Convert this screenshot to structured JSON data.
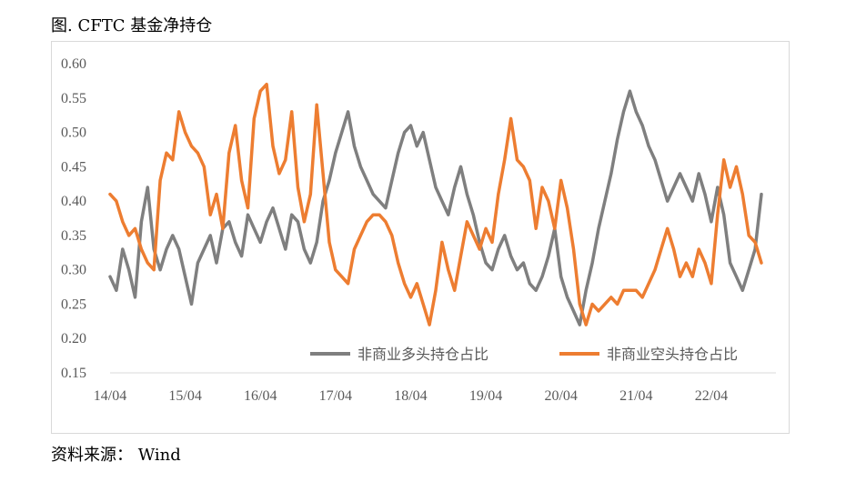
{
  "figure": {
    "title": "图. CFTC 基金净持仓",
    "source": "资料来源： Wind"
  },
  "chart_data": {
    "type": "line",
    "title": "",
    "xlabel": "",
    "ylabel": "",
    "ylim": [
      0.15,
      0.6
    ],
    "y_ticks": [
      "0.60",
      "0.55",
      "0.50",
      "0.45",
      "0.40",
      "0.35",
      "0.30",
      "0.25",
      "0.20",
      "0.15"
    ],
    "x_ticks": [
      "14/04",
      "15/04",
      "16/04",
      "17/04",
      "18/04",
      "19/04",
      "20/04",
      "21/04",
      "22/04"
    ],
    "x_range": [
      "2014-04",
      "2022-12"
    ],
    "grid": false,
    "legend_position": "bottom-right",
    "series": [
      {
        "name": "非商业多头持仓占比",
        "color": "#7f7f7f",
        "points": [
          [
            "2014-04",
            0.29
          ],
          [
            "2014-05",
            0.27
          ],
          [
            "2014-06",
            0.33
          ],
          [
            "2014-07",
            0.3
          ],
          [
            "2014-08",
            0.26
          ],
          [
            "2014-09",
            0.37
          ],
          [
            "2014-10",
            0.42
          ],
          [
            "2014-11",
            0.33
          ],
          [
            "2014-12",
            0.3
          ],
          [
            "2015-01",
            0.33
          ],
          [
            "2015-02",
            0.35
          ],
          [
            "2015-03",
            0.33
          ],
          [
            "2015-04",
            0.29
          ],
          [
            "2015-05",
            0.25
          ],
          [
            "2015-06",
            0.31
          ],
          [
            "2015-07",
            0.33
          ],
          [
            "2015-08",
            0.35
          ],
          [
            "2015-09",
            0.31
          ],
          [
            "2015-10",
            0.36
          ],
          [
            "2015-11",
            0.37
          ],
          [
            "2015-12",
            0.34
          ],
          [
            "2016-01",
            0.32
          ],
          [
            "2016-02",
            0.38
          ],
          [
            "2016-03",
            0.36
          ],
          [
            "2016-04",
            0.34
          ],
          [
            "2016-05",
            0.37
          ],
          [
            "2016-06",
            0.39
          ],
          [
            "2016-07",
            0.36
          ],
          [
            "2016-08",
            0.33
          ],
          [
            "2016-09",
            0.38
          ],
          [
            "2016-10",
            0.37
          ],
          [
            "2016-11",
            0.33
          ],
          [
            "2016-12",
            0.31
          ],
          [
            "2017-01",
            0.34
          ],
          [
            "2017-02",
            0.4
          ],
          [
            "2017-03",
            0.43
          ],
          [
            "2017-04",
            0.47
          ],
          [
            "2017-05",
            0.5
          ],
          [
            "2017-06",
            0.53
          ],
          [
            "2017-07",
            0.48
          ],
          [
            "2017-08",
            0.45
          ],
          [
            "2017-09",
            0.43
          ],
          [
            "2017-10",
            0.41
          ],
          [
            "2017-11",
            0.4
          ],
          [
            "2017-12",
            0.39
          ],
          [
            "2018-01",
            0.43
          ],
          [
            "2018-02",
            0.47
          ],
          [
            "2018-03",
            0.5
          ],
          [
            "2018-04",
            0.51
          ],
          [
            "2018-05",
            0.48
          ],
          [
            "2018-06",
            0.5
          ],
          [
            "2018-07",
            0.46
          ],
          [
            "2018-08",
            0.42
          ],
          [
            "2018-09",
            0.4
          ],
          [
            "2018-10",
            0.38
          ],
          [
            "2018-11",
            0.42
          ],
          [
            "2018-12",
            0.45
          ],
          [
            "2019-01",
            0.41
          ],
          [
            "2019-02",
            0.38
          ],
          [
            "2019-03",
            0.34
          ],
          [
            "2019-04",
            0.31
          ],
          [
            "2019-05",
            0.3
          ],
          [
            "2019-06",
            0.33
          ],
          [
            "2019-07",
            0.35
          ],
          [
            "2019-08",
            0.32
          ],
          [
            "2019-09",
            0.3
          ],
          [
            "2019-10",
            0.31
          ],
          [
            "2019-11",
            0.28
          ],
          [
            "2019-12",
            0.27
          ],
          [
            "2020-01",
            0.29
          ],
          [
            "2020-02",
            0.32
          ],
          [
            "2020-03",
            0.36
          ],
          [
            "2020-04",
            0.29
          ],
          [
            "2020-05",
            0.26
          ],
          [
            "2020-06",
            0.24
          ],
          [
            "2020-07",
            0.22
          ],
          [
            "2020-08",
            0.27
          ],
          [
            "2020-09",
            0.31
          ],
          [
            "2020-10",
            0.36
          ],
          [
            "2020-11",
            0.4
          ],
          [
            "2020-12",
            0.44
          ],
          [
            "2021-01",
            0.49
          ],
          [
            "2021-02",
            0.53
          ],
          [
            "2021-03",
            0.56
          ],
          [
            "2021-04",
            0.53
          ],
          [
            "2021-05",
            0.51
          ],
          [
            "2021-06",
            0.48
          ],
          [
            "2021-07",
            0.46
          ],
          [
            "2021-08",
            0.43
          ],
          [
            "2021-09",
            0.4
          ],
          [
            "2021-10",
            0.42
          ],
          [
            "2021-11",
            0.44
          ],
          [
            "2021-12",
            0.42
          ],
          [
            "2022-01",
            0.4
          ],
          [
            "2022-02",
            0.44
          ],
          [
            "2022-03",
            0.41
          ],
          [
            "2022-04",
            0.37
          ],
          [
            "2022-05",
            0.42
          ],
          [
            "2022-06",
            0.38
          ],
          [
            "2022-07",
            0.31
          ],
          [
            "2022-08",
            0.29
          ],
          [
            "2022-09",
            0.27
          ],
          [
            "2022-10",
            0.3
          ],
          [
            "2022-11",
            0.33
          ],
          [
            "2022-12",
            0.41
          ]
        ]
      },
      {
        "name": "非商业空头持仓占比",
        "color": "#ed7d31",
        "points": [
          [
            "2014-04",
            0.41
          ],
          [
            "2014-05",
            0.4
          ],
          [
            "2014-06",
            0.37
          ],
          [
            "2014-07",
            0.35
          ],
          [
            "2014-08",
            0.36
          ],
          [
            "2014-09",
            0.33
          ],
          [
            "2014-10",
            0.31
          ],
          [
            "2014-11",
            0.3
          ],
          [
            "2014-12",
            0.43
          ],
          [
            "2015-01",
            0.47
          ],
          [
            "2015-02",
            0.46
          ],
          [
            "2015-03",
            0.53
          ],
          [
            "2015-04",
            0.5
          ],
          [
            "2015-05",
            0.48
          ],
          [
            "2015-06",
            0.47
          ],
          [
            "2015-07",
            0.45
          ],
          [
            "2015-08",
            0.38
          ],
          [
            "2015-09",
            0.41
          ],
          [
            "2015-10",
            0.36
          ],
          [
            "2015-11",
            0.47
          ],
          [
            "2015-12",
            0.51
          ],
          [
            "2016-01",
            0.43
          ],
          [
            "2016-02",
            0.39
          ],
          [
            "2016-03",
            0.52
          ],
          [
            "2016-04",
            0.56
          ],
          [
            "2016-05",
            0.57
          ],
          [
            "2016-06",
            0.48
          ],
          [
            "2016-07",
            0.44
          ],
          [
            "2016-08",
            0.46
          ],
          [
            "2016-09",
            0.53
          ],
          [
            "2016-10",
            0.42
          ],
          [
            "2016-11",
            0.37
          ],
          [
            "2016-12",
            0.41
          ],
          [
            "2017-01",
            0.54
          ],
          [
            "2017-02",
            0.44
          ],
          [
            "2017-03",
            0.34
          ],
          [
            "2017-04",
            0.3
          ],
          [
            "2017-05",
            0.29
          ],
          [
            "2017-06",
            0.28
          ],
          [
            "2017-07",
            0.33
          ],
          [
            "2017-08",
            0.35
          ],
          [
            "2017-09",
            0.37
          ],
          [
            "2017-10",
            0.38
          ],
          [
            "2017-11",
            0.38
          ],
          [
            "2017-12",
            0.37
          ],
          [
            "2018-01",
            0.35
          ],
          [
            "2018-02",
            0.31
          ],
          [
            "2018-03",
            0.28
          ],
          [
            "2018-04",
            0.26
          ],
          [
            "2018-05",
            0.28
          ],
          [
            "2018-06",
            0.25
          ],
          [
            "2018-07",
            0.22
          ],
          [
            "2018-08",
            0.27
          ],
          [
            "2018-09",
            0.34
          ],
          [
            "2018-10",
            0.3
          ],
          [
            "2018-11",
            0.27
          ],
          [
            "2018-12",
            0.32
          ],
          [
            "2019-01",
            0.37
          ],
          [
            "2019-02",
            0.35
          ],
          [
            "2019-03",
            0.33
          ],
          [
            "2019-04",
            0.36
          ],
          [
            "2019-05",
            0.34
          ],
          [
            "2019-06",
            0.41
          ],
          [
            "2019-07",
            0.46
          ],
          [
            "2019-08",
            0.52
          ],
          [
            "2019-09",
            0.46
          ],
          [
            "2019-10",
            0.45
          ],
          [
            "2019-11",
            0.43
          ],
          [
            "2019-12",
            0.36
          ],
          [
            "2020-01",
            0.42
          ],
          [
            "2020-02",
            0.4
          ],
          [
            "2020-03",
            0.36
          ],
          [
            "2020-04",
            0.43
          ],
          [
            "2020-05",
            0.39
          ],
          [
            "2020-06",
            0.33
          ],
          [
            "2020-07",
            0.25
          ],
          [
            "2020-08",
            0.22
          ],
          [
            "2020-09",
            0.25
          ],
          [
            "2020-10",
            0.24
          ],
          [
            "2020-11",
            0.25
          ],
          [
            "2020-12",
            0.26
          ],
          [
            "2021-01",
            0.25
          ],
          [
            "2021-02",
            0.27
          ],
          [
            "2021-03",
            0.27
          ],
          [
            "2021-04",
            0.27
          ],
          [
            "2021-05",
            0.26
          ],
          [
            "2021-06",
            0.28
          ],
          [
            "2021-07",
            0.3
          ],
          [
            "2021-08",
            0.33
          ],
          [
            "2021-09",
            0.36
          ],
          [
            "2021-10",
            0.33
          ],
          [
            "2021-11",
            0.29
          ],
          [
            "2021-12",
            0.31
          ],
          [
            "2022-01",
            0.29
          ],
          [
            "2022-02",
            0.33
          ],
          [
            "2022-03",
            0.31
          ],
          [
            "2022-04",
            0.28
          ],
          [
            "2022-05",
            0.38
          ],
          [
            "2022-06",
            0.46
          ],
          [
            "2022-07",
            0.42
          ],
          [
            "2022-08",
            0.45
          ],
          [
            "2022-09",
            0.41
          ],
          [
            "2022-10",
            0.35
          ],
          [
            "2022-11",
            0.34
          ],
          [
            "2022-12",
            0.31
          ]
        ]
      }
    ]
  }
}
